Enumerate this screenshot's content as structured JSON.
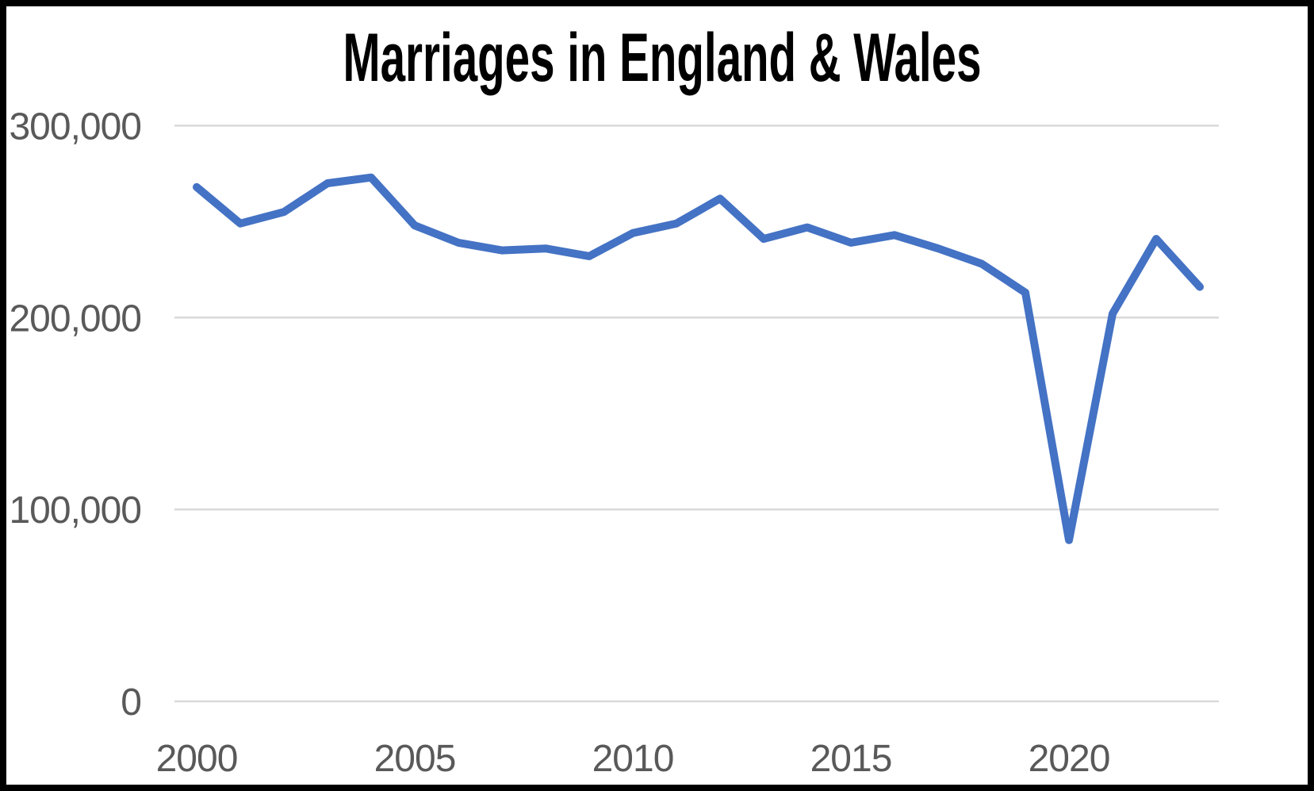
{
  "chart_data": {
    "type": "line",
    "title": "Marriages in England & Wales",
    "x": [
      2000,
      2001,
      2002,
      2003,
      2004,
      2005,
      2006,
      2007,
      2008,
      2009,
      2010,
      2011,
      2012,
      2013,
      2014,
      2015,
      2016,
      2017,
      2018,
      2019,
      2020,
      2021,
      2022,
      2023
    ],
    "values": [
      268000,
      249000,
      255000,
      270000,
      273000,
      248000,
      239000,
      235000,
      236000,
      232000,
      244000,
      249000,
      262000,
      241000,
      247000,
      239000,
      243000,
      236000,
      228000,
      213000,
      84000,
      202000,
      241000,
      216000
    ],
    "series_name": "Marriages",
    "xlabel": "",
    "ylabel": "",
    "x_ticks": [
      2000,
      2005,
      2010,
      2015,
      2020
    ],
    "x_tick_labels": [
      "2000",
      "2005",
      "2010",
      "2015",
      "2020"
    ],
    "y_ticks": [
      0,
      100000,
      200000,
      300000
    ],
    "y_tick_labels": [
      "0",
      "100,000",
      "200,000",
      "300,000"
    ],
    "xlim": [
      2000,
      2023
    ],
    "ylim": [
      0,
      300000
    ],
    "grid": "horizontal",
    "legend": "none",
    "line_color": "#4472C4",
    "gridline_color": "#D9D9D9",
    "tick_label_color": "#595959",
    "title_color": "#000000",
    "frame_color": "#000000",
    "background_color": "#FFFFFF"
  }
}
